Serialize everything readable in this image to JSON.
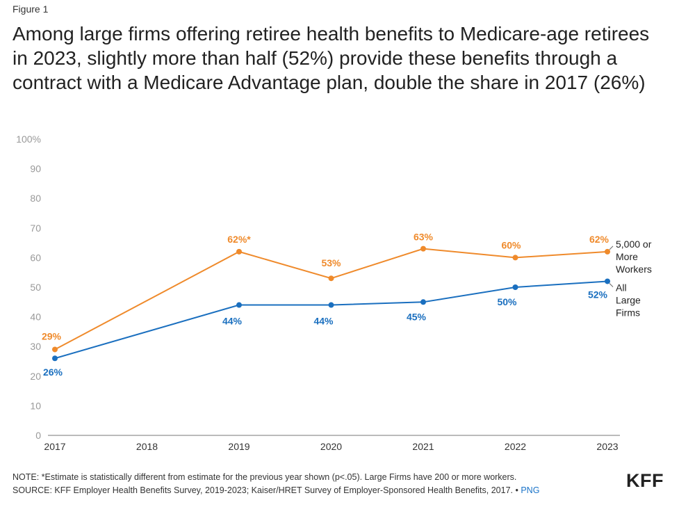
{
  "figure_label": "Figure 1",
  "title": "Among large firms offering retiree health benefits to Medicare-age retirees in 2023, slightly more than half (52%) provide these benefits through a contract with a Medicare Advantage plan, double the share in 2017 (26%)",
  "note": "NOTE: *Estimate is statistically different from estimate for the previous year shown (p<.05). Large Firms have 200 or more workers.",
  "source": "SOURCE: KFF Employer Health Benefits Survey, 2019-2023; Kaiser/HRET Survey of Employer-Sponsored Health Benefits, 2017. •",
  "png_link": "PNG",
  "logo": "KFF",
  "chart_data": {
    "type": "line",
    "x": [
      2017,
      2018,
      2019,
      2020,
      2021,
      2022,
      2023
    ],
    "x_tick_labels": [
      "2017",
      "2018",
      "2019",
      "2020",
      "2021",
      "2022",
      "2023"
    ],
    "ylim": [
      0,
      100
    ],
    "y_ticks": [
      0,
      10,
      20,
      30,
      40,
      50,
      60,
      70,
      80,
      90,
      100
    ],
    "y_tick_labels": [
      "0",
      "10",
      "20",
      "30",
      "40",
      "50",
      "60",
      "70",
      "80",
      "90",
      "100%"
    ],
    "grid": false,
    "series": [
      {
        "name": "5,000 or More Workers",
        "name_lines": [
          "5,000 or",
          "More",
          "Workers"
        ],
        "color": "#ef8a2b",
        "points": [
          {
            "x": 2017,
            "y": 29,
            "label": "29%"
          },
          {
            "x": 2019,
            "y": 62,
            "label": "62%*"
          },
          {
            "x": 2020,
            "y": 53,
            "label": "53%"
          },
          {
            "x": 2021,
            "y": 63,
            "label": "63%"
          },
          {
            "x": 2022,
            "y": 60,
            "label": "60%"
          },
          {
            "x": 2023,
            "y": 62,
            "label": "62%"
          }
        ]
      },
      {
        "name": "All Large Firms",
        "name_lines": [
          "All",
          "Large",
          "Firms"
        ],
        "color": "#1a6fbf",
        "points": [
          {
            "x": 2017,
            "y": 26,
            "label": "26%"
          },
          {
            "x": 2019,
            "y": 44,
            "label": "44%"
          },
          {
            "x": 2020,
            "y": 44,
            "label": "44%"
          },
          {
            "x": 2021,
            "y": 45,
            "label": "45%"
          },
          {
            "x": 2022,
            "y": 50,
            "label": "50%"
          },
          {
            "x": 2023,
            "y": 52,
            "label": "52%"
          }
        ]
      }
    ]
  }
}
